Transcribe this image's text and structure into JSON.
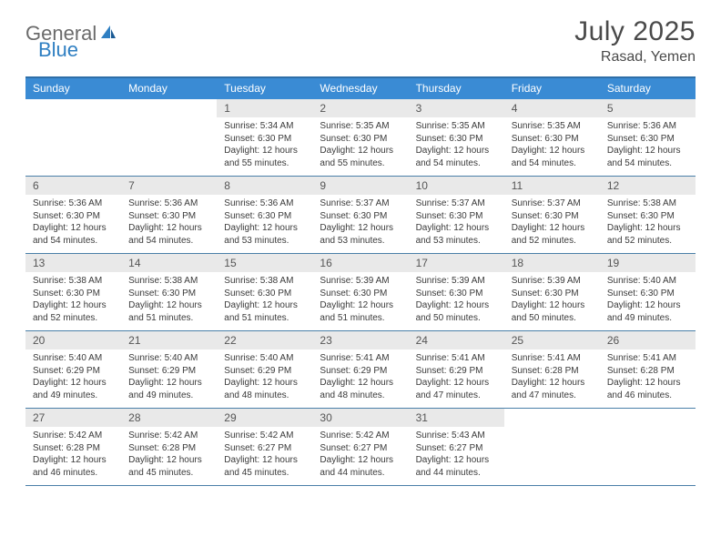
{
  "brand": {
    "text1": "General",
    "text2": "Blue"
  },
  "title": "July 2025",
  "location": "Rasad, Yemen",
  "colors": {
    "header_bg": "#3a8bd4",
    "border": "#2f6fa8",
    "daynum_bg": "#e9e9e9",
    "text": "#333333",
    "brand_gray": "#6b6b6b",
    "brand_blue": "#2f7fc2"
  },
  "day_names": [
    "Sunday",
    "Monday",
    "Tuesday",
    "Wednesday",
    "Thursday",
    "Friday",
    "Saturday"
  ],
  "weeks": [
    [
      {
        "n": "",
        "sr": "",
        "ss": "",
        "dl": ""
      },
      {
        "n": "",
        "sr": "",
        "ss": "",
        "dl": ""
      },
      {
        "n": "1",
        "sr": "Sunrise: 5:34 AM",
        "ss": "Sunset: 6:30 PM",
        "dl": "Daylight: 12 hours and 55 minutes."
      },
      {
        "n": "2",
        "sr": "Sunrise: 5:35 AM",
        "ss": "Sunset: 6:30 PM",
        "dl": "Daylight: 12 hours and 55 minutes."
      },
      {
        "n": "3",
        "sr": "Sunrise: 5:35 AM",
        "ss": "Sunset: 6:30 PM",
        "dl": "Daylight: 12 hours and 54 minutes."
      },
      {
        "n": "4",
        "sr": "Sunrise: 5:35 AM",
        "ss": "Sunset: 6:30 PM",
        "dl": "Daylight: 12 hours and 54 minutes."
      },
      {
        "n": "5",
        "sr": "Sunrise: 5:36 AM",
        "ss": "Sunset: 6:30 PM",
        "dl": "Daylight: 12 hours and 54 minutes."
      }
    ],
    [
      {
        "n": "6",
        "sr": "Sunrise: 5:36 AM",
        "ss": "Sunset: 6:30 PM",
        "dl": "Daylight: 12 hours and 54 minutes."
      },
      {
        "n": "7",
        "sr": "Sunrise: 5:36 AM",
        "ss": "Sunset: 6:30 PM",
        "dl": "Daylight: 12 hours and 54 minutes."
      },
      {
        "n": "8",
        "sr": "Sunrise: 5:36 AM",
        "ss": "Sunset: 6:30 PM",
        "dl": "Daylight: 12 hours and 53 minutes."
      },
      {
        "n": "9",
        "sr": "Sunrise: 5:37 AM",
        "ss": "Sunset: 6:30 PM",
        "dl": "Daylight: 12 hours and 53 minutes."
      },
      {
        "n": "10",
        "sr": "Sunrise: 5:37 AM",
        "ss": "Sunset: 6:30 PM",
        "dl": "Daylight: 12 hours and 53 minutes."
      },
      {
        "n": "11",
        "sr": "Sunrise: 5:37 AM",
        "ss": "Sunset: 6:30 PM",
        "dl": "Daylight: 12 hours and 52 minutes."
      },
      {
        "n": "12",
        "sr": "Sunrise: 5:38 AM",
        "ss": "Sunset: 6:30 PM",
        "dl": "Daylight: 12 hours and 52 minutes."
      }
    ],
    [
      {
        "n": "13",
        "sr": "Sunrise: 5:38 AM",
        "ss": "Sunset: 6:30 PM",
        "dl": "Daylight: 12 hours and 52 minutes."
      },
      {
        "n": "14",
        "sr": "Sunrise: 5:38 AM",
        "ss": "Sunset: 6:30 PM",
        "dl": "Daylight: 12 hours and 51 minutes."
      },
      {
        "n": "15",
        "sr": "Sunrise: 5:38 AM",
        "ss": "Sunset: 6:30 PM",
        "dl": "Daylight: 12 hours and 51 minutes."
      },
      {
        "n": "16",
        "sr": "Sunrise: 5:39 AM",
        "ss": "Sunset: 6:30 PM",
        "dl": "Daylight: 12 hours and 51 minutes."
      },
      {
        "n": "17",
        "sr": "Sunrise: 5:39 AM",
        "ss": "Sunset: 6:30 PM",
        "dl": "Daylight: 12 hours and 50 minutes."
      },
      {
        "n": "18",
        "sr": "Sunrise: 5:39 AM",
        "ss": "Sunset: 6:30 PM",
        "dl": "Daylight: 12 hours and 50 minutes."
      },
      {
        "n": "19",
        "sr": "Sunrise: 5:40 AM",
        "ss": "Sunset: 6:30 PM",
        "dl": "Daylight: 12 hours and 49 minutes."
      }
    ],
    [
      {
        "n": "20",
        "sr": "Sunrise: 5:40 AM",
        "ss": "Sunset: 6:29 PM",
        "dl": "Daylight: 12 hours and 49 minutes."
      },
      {
        "n": "21",
        "sr": "Sunrise: 5:40 AM",
        "ss": "Sunset: 6:29 PM",
        "dl": "Daylight: 12 hours and 49 minutes."
      },
      {
        "n": "22",
        "sr": "Sunrise: 5:40 AM",
        "ss": "Sunset: 6:29 PM",
        "dl": "Daylight: 12 hours and 48 minutes."
      },
      {
        "n": "23",
        "sr": "Sunrise: 5:41 AM",
        "ss": "Sunset: 6:29 PM",
        "dl": "Daylight: 12 hours and 48 minutes."
      },
      {
        "n": "24",
        "sr": "Sunrise: 5:41 AM",
        "ss": "Sunset: 6:29 PM",
        "dl": "Daylight: 12 hours and 47 minutes."
      },
      {
        "n": "25",
        "sr": "Sunrise: 5:41 AM",
        "ss": "Sunset: 6:28 PM",
        "dl": "Daylight: 12 hours and 47 minutes."
      },
      {
        "n": "26",
        "sr": "Sunrise: 5:41 AM",
        "ss": "Sunset: 6:28 PM",
        "dl": "Daylight: 12 hours and 46 minutes."
      }
    ],
    [
      {
        "n": "27",
        "sr": "Sunrise: 5:42 AM",
        "ss": "Sunset: 6:28 PM",
        "dl": "Daylight: 12 hours and 46 minutes."
      },
      {
        "n": "28",
        "sr": "Sunrise: 5:42 AM",
        "ss": "Sunset: 6:28 PM",
        "dl": "Daylight: 12 hours and 45 minutes."
      },
      {
        "n": "29",
        "sr": "Sunrise: 5:42 AM",
        "ss": "Sunset: 6:27 PM",
        "dl": "Daylight: 12 hours and 45 minutes."
      },
      {
        "n": "30",
        "sr": "Sunrise: 5:42 AM",
        "ss": "Sunset: 6:27 PM",
        "dl": "Daylight: 12 hours and 44 minutes."
      },
      {
        "n": "31",
        "sr": "Sunrise: 5:43 AM",
        "ss": "Sunset: 6:27 PM",
        "dl": "Daylight: 12 hours and 44 minutes."
      },
      {
        "n": "",
        "sr": "",
        "ss": "",
        "dl": ""
      },
      {
        "n": "",
        "sr": "",
        "ss": "",
        "dl": ""
      }
    ]
  ]
}
